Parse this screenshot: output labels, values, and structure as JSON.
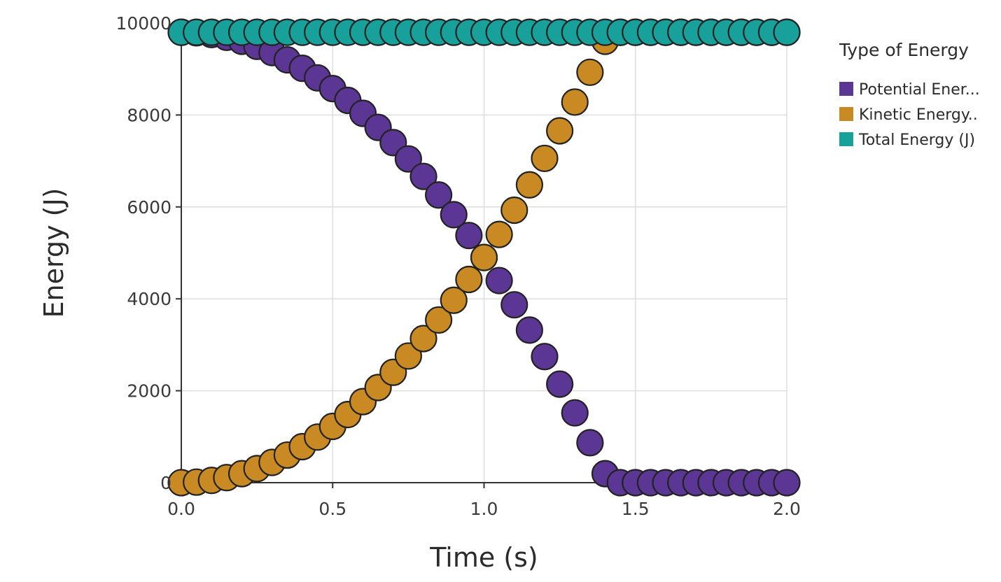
{
  "chart_data": {
    "type": "scatter",
    "title": "",
    "xlabel": "Time (s)",
    "ylabel": "Energy (J)",
    "xlim": [
      0,
      2
    ],
    "ylim": [
      0,
      10000
    ],
    "xticks": [
      "0.0",
      "0.5",
      "1.0",
      "1.5",
      "2.0"
    ],
    "yticks": [
      "0",
      "2000",
      "4000",
      "6000",
      "8000",
      "10000"
    ],
    "grid": true,
    "legend": {
      "title": "Type of Energy",
      "placement": "right",
      "entries": [
        "Potential Ener...",
        "Kinetic Energy..",
        "Total Energy (J)"
      ]
    },
    "x": [
      0.0,
      0.05,
      0.1,
      0.15,
      0.2,
      0.25,
      0.3,
      0.35,
      0.4,
      0.45,
      0.5,
      0.55,
      0.6,
      0.65,
      0.7,
      0.75,
      0.8,
      0.85,
      0.9,
      0.95,
      1.0,
      1.05,
      1.1,
      1.15,
      1.2,
      1.25,
      1.3,
      1.35,
      1.4,
      1.45,
      1.5,
      1.55,
      1.6,
      1.65,
      1.7,
      1.75,
      1.8,
      1.85,
      1.9,
      1.95,
      2.0
    ],
    "series": [
      {
        "name": "Potential Ener...",
        "color": "#5c3694",
        "values": [
          9800,
          9788,
          9751,
          9690,
          9604,
          9494,
          9359,
          9200,
          9016,
          8808,
          8575,
          8318,
          8036,
          7730,
          7399,
          7044,
          6664,
          6260,
          5831,
          5378,
          4900,
          4398,
          3871,
          3320,
          2744,
          2144,
          1519,
          870,
          196,
          0,
          0,
          0,
          0,
          0,
          0,
          0,
          0,
          0,
          0,
          0,
          0
        ]
      },
      {
        "name": "Kinetic Energy..",
        "color": "#c98a24",
        "values": [
          0,
          12,
          49,
          110,
          196,
          306,
          441,
          600,
          784,
          992,
          1225,
          1482,
          1764,
          2070,
          2401,
          2756,
          3136,
          3540,
          3969,
          4422,
          4900,
          5402,
          5929,
          6480,
          7056,
          7656,
          8281,
          8930,
          9604,
          9800,
          9800,
          9800,
          9800,
          9800,
          9800,
          9800,
          9800,
          9800,
          9800,
          9800,
          9800
        ]
      },
      {
        "name": "Total Energy (J)",
        "color": "#18a19a",
        "values": [
          9800,
          9800,
          9800,
          9800,
          9800,
          9800,
          9800,
          9800,
          9800,
          9800,
          9800,
          9800,
          9800,
          9800,
          9800,
          9800,
          9800,
          9800,
          9800,
          9800,
          9800,
          9800,
          9800,
          9800,
          9800,
          9800,
          9800,
          9800,
          9800,
          9800,
          9800,
          9800,
          9800,
          9800,
          9800,
          9800,
          9800,
          9800,
          9800,
          9800,
          9800
        ]
      }
    ]
  }
}
